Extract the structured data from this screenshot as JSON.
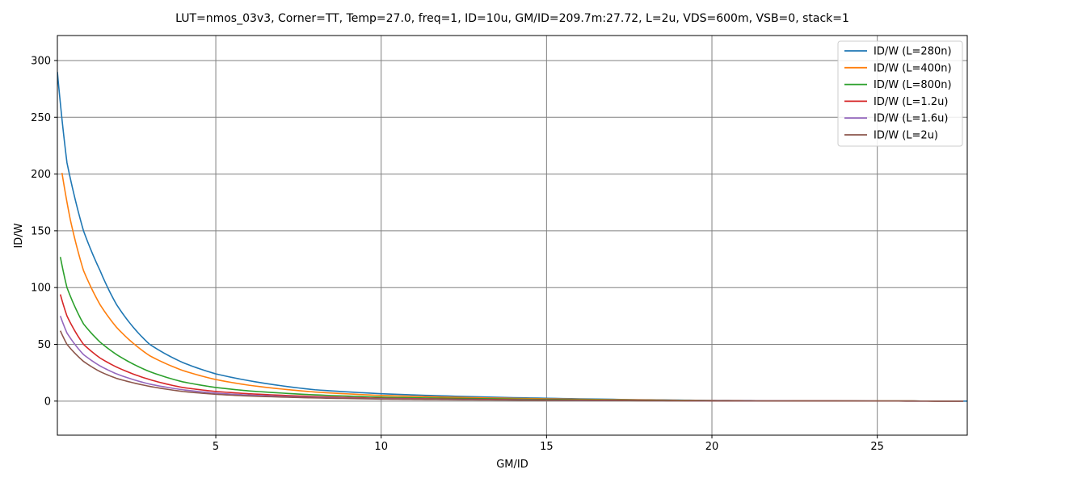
{
  "chart_data": {
    "type": "line",
    "title": "LUT=nmos_03v3, Corner=TT, Temp=27.0, freq=1, ID=10u, GM/ID=209.7m:27.72, L=2u, VDS=600m, VSB=0, stack=1",
    "xlabel": "GM/ID",
    "ylabel": "ID/W",
    "xlim": [
      0.21,
      27.72
    ],
    "ylim": [
      -30,
      322
    ],
    "x_ticks": [
      5,
      10,
      15,
      20,
      25
    ],
    "y_ticks": [
      0,
      50,
      100,
      150,
      200,
      250,
      300
    ],
    "grid": true,
    "legend_position": "top-right",
    "series": [
      {
        "name": "ID/W (L=280n)",
        "color": "#1f77b4",
        "x": [
          0.21,
          0.5,
          1,
          1.5,
          2,
          3,
          4,
          5,
          6,
          8,
          10,
          12,
          15,
          18,
          20,
          22,
          25,
          27.72
        ],
        "y": [
          290,
          210,
          150,
          115,
          85,
          50,
          34,
          24,
          18,
          10,
          6.5,
          4.5,
          2.5,
          1.2,
          0.6,
          0.3,
          0.1,
          0
        ]
      },
      {
        "name": "ID/W (L=400n)",
        "color": "#ff7f0e",
        "x": [
          0.35,
          0.6,
          1,
          1.5,
          2,
          3,
          4,
          5,
          6,
          8,
          10,
          12,
          15,
          18,
          20,
          22,
          25,
          27.5
        ],
        "y": [
          201,
          160,
          115,
          85,
          65,
          40,
          27,
          19,
          14,
          8,
          5,
          3.5,
          2,
          1,
          0.5,
          0.3,
          0.1,
          0
        ]
      },
      {
        "name": "ID/W (L=800n)",
        "color": "#2ca02c",
        "x": [
          0.3,
          0.5,
          1,
          1.5,
          2,
          3,
          4,
          5,
          6,
          8,
          10,
          12,
          15,
          18,
          20,
          22,
          25,
          27.6
        ],
        "y": [
          127,
          100,
          68,
          52,
          41,
          26,
          17,
          12,
          9,
          5.5,
          3.5,
          2.5,
          1.5,
          0.7,
          0.4,
          0.2,
          0.1,
          0
        ]
      },
      {
        "name": "ID/W (L=1.2u)",
        "color": "#d62728",
        "x": [
          0.3,
          0.5,
          1,
          1.5,
          2,
          3,
          4,
          5,
          6,
          8,
          10,
          12,
          15,
          18,
          20,
          22,
          25,
          27.6
        ],
        "y": [
          94,
          75,
          50,
          38,
          30,
          19,
          12,
          8.5,
          6.5,
          4,
          2.5,
          1.8,
          1,
          0.5,
          0.3,
          0.2,
          0.1,
          0
        ]
      },
      {
        "name": "ID/W (L=1.6u)",
        "color": "#9467bd",
        "x": [
          0.3,
          0.5,
          1,
          1.5,
          2,
          3,
          4,
          5,
          6,
          8,
          10,
          12,
          15,
          18,
          20,
          22,
          25,
          27.6
        ],
        "y": [
          75,
          60,
          41,
          31,
          24,
          15,
          10,
          7,
          5.3,
          3.2,
          2.1,
          1.5,
          0.8,
          0.4,
          0.25,
          0.15,
          0.05,
          0
        ]
      },
      {
        "name": "ID/W (L=2u)",
        "color": "#8c564b",
        "x": [
          0.3,
          0.5,
          1,
          1.5,
          2,
          3,
          4,
          5,
          6,
          8,
          10,
          12,
          15,
          18,
          20,
          22,
          25,
          27.6
        ],
        "y": [
          62,
          50,
          35,
          26,
          20,
          13,
          8.5,
          6,
          4.5,
          2.8,
          1.8,
          1.3,
          0.7,
          0.35,
          0.2,
          0.1,
          0.05,
          0
        ]
      }
    ]
  }
}
